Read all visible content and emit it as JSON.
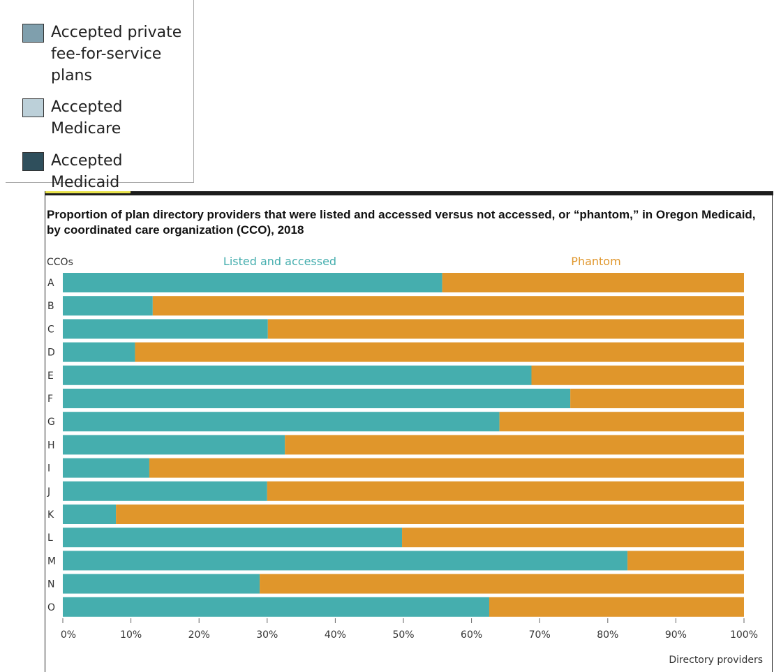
{
  "legend": {
    "items": [
      {
        "label": "Accepted private\nfee-for-service\nplans",
        "color": "#7f9fad"
      },
      {
        "label": "Accepted\nMedicare",
        "color": "#bcd0d9"
      },
      {
        "label": "Accepted\nMedicaid",
        "color": "#2f4f5c"
      }
    ]
  },
  "chart_data": {
    "type": "bar",
    "orientation": "horizontal",
    "stacked": true,
    "title": "Proportion of plan directory providers that were listed and accessed versus not accessed, or “phantom,” in Oregon Medicaid, by coordinated care organization (CCO), 2018",
    "ylabel": "CCOs",
    "xlabel": "Directory providers",
    "categories": [
      "A",
      "B",
      "C",
      "D",
      "E",
      "F",
      "G",
      "H",
      "I",
      "J",
      "K",
      "L",
      "M",
      "N",
      "O"
    ],
    "series": [
      {
        "name": "Listed and accessed",
        "color": "#45aeae",
        "values": [
          55.7,
          13.2,
          30.1,
          10.6,
          68.8,
          74.5,
          64.1,
          32.6,
          12.7,
          30.0,
          7.8,
          49.8,
          82.9,
          28.9,
          62.6
        ]
      },
      {
        "name": "Phantom",
        "color": "#e0962b",
        "values": [
          44.3,
          86.8,
          69.9,
          89.4,
          31.2,
          25.5,
          35.9,
          67.4,
          87.3,
          70.0,
          92.2,
          50.2,
          17.1,
          71.1,
          37.4
        ]
      }
    ],
    "xlim": [
      0,
      100
    ],
    "xticks": [
      0,
      10,
      20,
      30,
      40,
      50,
      60,
      70,
      80,
      90,
      100
    ],
    "xtick_labels": [
      "0%",
      "10%",
      "20%",
      "30%",
      "40%",
      "50%",
      "60%",
      "70%",
      "80%",
      "90%",
      "100%"
    ],
    "grid": false
  }
}
